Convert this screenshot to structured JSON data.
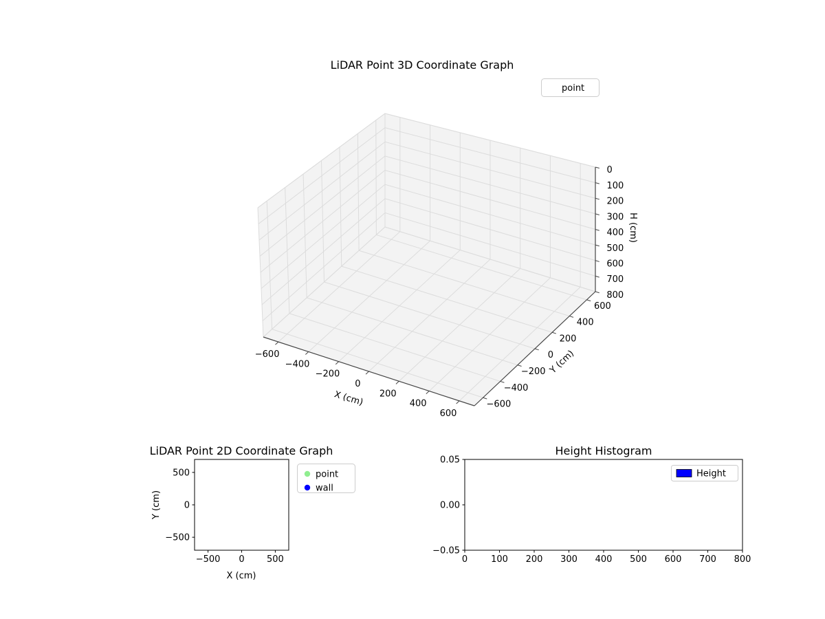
{
  "figure": {
    "background": "#ffffff",
    "text_color": "#000000",
    "pane_color": "#f3f3f3",
    "grid_color": "#dcdcdc",
    "axis_color": "#444444",
    "spine_color": "#000000",
    "legend_border_color": "#cccccc"
  },
  "chart_data": [
    {
      "type": "scatter",
      "projection": "3d",
      "title": "LiDAR Point 3D Coordinate Graph",
      "xlabel": "X (cm)",
      "ylabel": "Y (cm)",
      "zlabel": "H (cm)",
      "xlim": [
        -700,
        700
      ],
      "ylim": [
        -700,
        700
      ],
      "zlim": [
        0,
        800
      ],
      "zaxis_inverted": true,
      "grid": true,
      "xticks": [
        -600,
        -400,
        -200,
        0,
        200,
        400,
        600
      ],
      "xticklabels": [
        "−600",
        "−400",
        "−200",
        "0",
        "200",
        "400",
        "600"
      ],
      "yticks": [
        -600,
        -400,
        -200,
        0,
        200,
        400,
        600
      ],
      "yticklabels": [
        "−600",
        "−400",
        "−200",
        "0",
        "200",
        "400",
        "600"
      ],
      "zticks": [
        0,
        100,
        200,
        300,
        400,
        500,
        600,
        700,
        800
      ],
      "zticklabels": [
        "0",
        "100",
        "200",
        "300",
        "400",
        "500",
        "600",
        "700",
        "800"
      ],
      "legend": {
        "position": "upper right",
        "entries": [
          {
            "label": "point",
            "marker": "none"
          }
        ]
      },
      "series": [
        {
          "name": "point",
          "points": []
        }
      ]
    },
    {
      "type": "scatter",
      "projection": "2d",
      "title": "LiDAR Point 2D Coordinate Graph",
      "xlabel": "X (cm)",
      "ylabel": "Y (cm)",
      "xlim": [
        -700,
        700
      ],
      "ylim": [
        -700,
        700
      ],
      "grid": false,
      "xticks": [
        -500,
        0,
        500
      ],
      "xticklabels": [
        "−500",
        "0",
        "500"
      ],
      "yticks": [
        500,
        0,
        -500
      ],
      "yticklabels": [
        "500",
        "0",
        "−500"
      ],
      "legend": {
        "position": "right outside",
        "entries": [
          {
            "label": "point",
            "marker": "circle",
            "color": "#90ee90"
          },
          {
            "label": "wall",
            "marker": "circle",
            "color": "#0000ff"
          }
        ]
      },
      "series": [
        {
          "name": "point",
          "points": []
        },
        {
          "name": "wall",
          "points": []
        }
      ]
    },
    {
      "type": "bar",
      "title": "Height Histogram",
      "xlabel": "",
      "ylabel": "",
      "xlim": [
        0,
        800
      ],
      "ylim": [
        -0.05,
        0.05
      ],
      "grid": false,
      "xticks": [
        0,
        100,
        200,
        300,
        400,
        500,
        600,
        700,
        800
      ],
      "xticklabels": [
        "0",
        "100",
        "200",
        "300",
        "400",
        "500",
        "600",
        "700",
        "800"
      ],
      "yticks": [
        0.05,
        0,
        -0.05
      ],
      "yticklabels": [
        "0.05",
        "0.00",
        "−0.05"
      ],
      "legend": {
        "position": "upper right",
        "entries": [
          {
            "label": "Height",
            "marker": "rect",
            "color": "#0000ff"
          }
        ]
      },
      "values": []
    }
  ]
}
